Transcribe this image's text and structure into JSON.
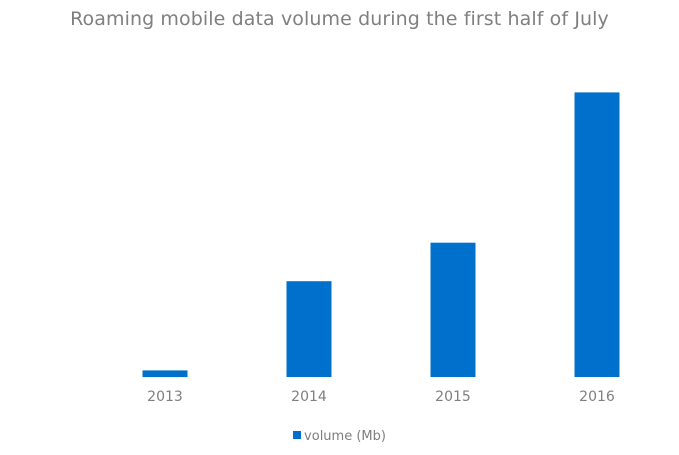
{
  "colors": {
    "bar": "#0070cd",
    "text": "#7f7f7f"
  },
  "chart_data": {
    "type": "bar",
    "title": "Roaming mobile data volume during the first half of July",
    "categories": [
      "2013",
      "2014",
      "2015",
      "2016"
    ],
    "series": [
      {
        "name": "volume (Mb)",
        "values": [
          2.5,
          36,
          50.5,
          107
        ]
      }
    ],
    "ylim": [
      0,
      110
    ],
    "grid": false,
    "legend": "bottom"
  }
}
